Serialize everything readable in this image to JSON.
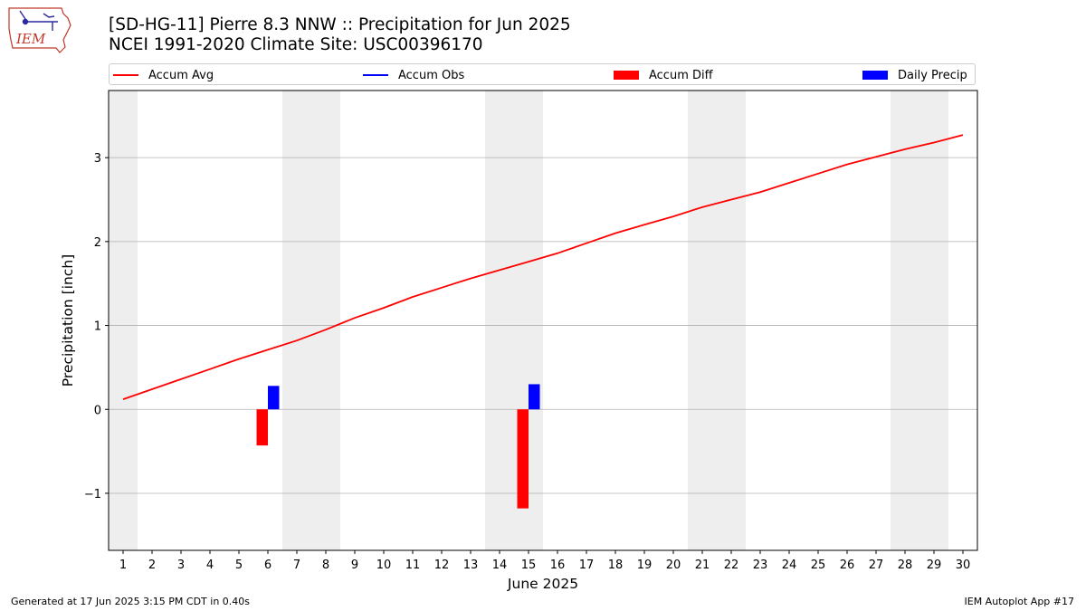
{
  "header": {
    "title_line1": "[SD-HG-11] Pierre 8.3 NNW :: Precipitation for Jun 2025",
    "title_line2": "NCEI 1991-2020 Climate Site: USC00396170",
    "logo_text": "IEM"
  },
  "footer": {
    "left": "Generated at 17 Jun 2025 3:15 PM CDT in 0.40s",
    "right": "IEM Autoplot App #17"
  },
  "legend": {
    "items": [
      {
        "label": "Accum Avg",
        "kind": "line",
        "color": "#ff0000"
      },
      {
        "label": "Accum Obs",
        "kind": "line",
        "color": "#0000ff"
      },
      {
        "label": "Accum Diff",
        "kind": "patch",
        "color": "#ff0000"
      },
      {
        "label": "Daily Precip",
        "kind": "patch",
        "color": "#0000ff"
      }
    ],
    "placement": "top, above plot"
  },
  "chart_data": {
    "type": "line",
    "title": "[SD-HG-11] Pierre 8.3 NNW :: Precipitation for Jun 2025",
    "xlabel": "June 2025",
    "ylabel": "Precipitation [inch]",
    "xlim": [
      0.5,
      30.5
    ],
    "ylim": [
      -1.68,
      3.8
    ],
    "grid": "horizontal",
    "x_ticks": [
      1,
      2,
      3,
      4,
      5,
      6,
      7,
      8,
      9,
      10,
      11,
      12,
      13,
      14,
      15,
      16,
      17,
      18,
      19,
      20,
      21,
      22,
      23,
      24,
      25,
      26,
      27,
      28,
      29,
      30
    ],
    "y_ticks": [
      -1,
      0,
      1,
      2,
      3
    ],
    "y_tick_labels": [
      "−1",
      "0",
      "1",
      "2",
      "3"
    ],
    "weekend_shading": [
      [
        0.5,
        1.5
      ],
      [
        6.5,
        8.5
      ],
      [
        13.5,
        15.5
      ],
      [
        20.5,
        22.5
      ],
      [
        27.5,
        29.5
      ]
    ],
    "weekend_color": "#eeeeee",
    "series": [
      {
        "name": "Accum Avg",
        "kind": "line",
        "color": "#ff0000",
        "x": [
          1,
          2,
          3,
          4,
          5,
          6,
          7,
          8,
          9,
          10,
          11,
          12,
          13,
          14,
          15,
          16,
          17,
          18,
          19,
          20,
          21,
          22,
          23,
          24,
          25,
          26,
          27,
          28,
          29,
          30
        ],
        "values": [
          0.12,
          0.24,
          0.36,
          0.48,
          0.6,
          0.71,
          0.82,
          0.95,
          1.09,
          1.21,
          1.34,
          1.45,
          1.56,
          1.66,
          1.76,
          1.86,
          1.98,
          2.1,
          2.2,
          2.3,
          2.41,
          2.5,
          2.59,
          2.7,
          2.81,
          2.92,
          3.01,
          3.1,
          3.18,
          3.27
        ]
      },
      {
        "name": "Accum Diff",
        "kind": "bar",
        "color": "#ff0000",
        "x": [
          6,
          15
        ],
        "values": [
          -0.43,
          -1.18
        ]
      },
      {
        "name": "Daily Precip",
        "kind": "bar",
        "color": "#0000ff",
        "x": [
          6,
          15
        ],
        "values": [
          0.28,
          0.3
        ]
      }
    ]
  }
}
